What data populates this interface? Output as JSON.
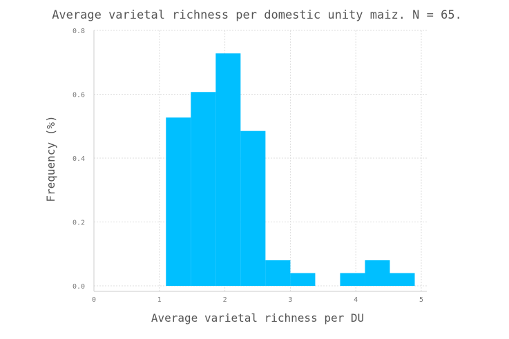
{
  "chart_data": {
    "type": "bar",
    "title": "Average varietal richness per domestic unity maiz. N = 65.",
    "xlabel": "Average varietal richness per DU",
    "ylabel": "Frequency (%)",
    "xlim": [
      0,
      5
    ],
    "ylim": [
      0,
      0.8
    ],
    "xticks": [
      "0",
      "1",
      "2",
      "3",
      "4",
      "5"
    ],
    "yticks": [
      "0.0",
      "0.2",
      "0.4",
      "0.6",
      "0.8"
    ],
    "grid": true,
    "bar_color": "#00bfff",
    "bins": [
      {
        "x0": 1.1,
        "x1": 1.48,
        "value": 0.527
      },
      {
        "x0": 1.48,
        "x1": 1.86,
        "value": 0.607
      },
      {
        "x0": 1.86,
        "x1": 2.24,
        "value": 0.728
      },
      {
        "x0": 2.24,
        "x1": 2.62,
        "value": 0.485
      },
      {
        "x0": 2.62,
        "x1": 3.0,
        "value": 0.08
      },
      {
        "x0": 3.0,
        "x1": 3.38,
        "value": 0.04
      },
      {
        "x0": 3.38,
        "x1": 3.76,
        "value": 0.0
      },
      {
        "x0": 3.76,
        "x1": 4.14,
        "value": 0.04
      },
      {
        "x0": 4.14,
        "x1": 4.52,
        "value": 0.08
      },
      {
        "x0": 4.52,
        "x1": 4.9,
        "value": 0.04
      }
    ]
  }
}
